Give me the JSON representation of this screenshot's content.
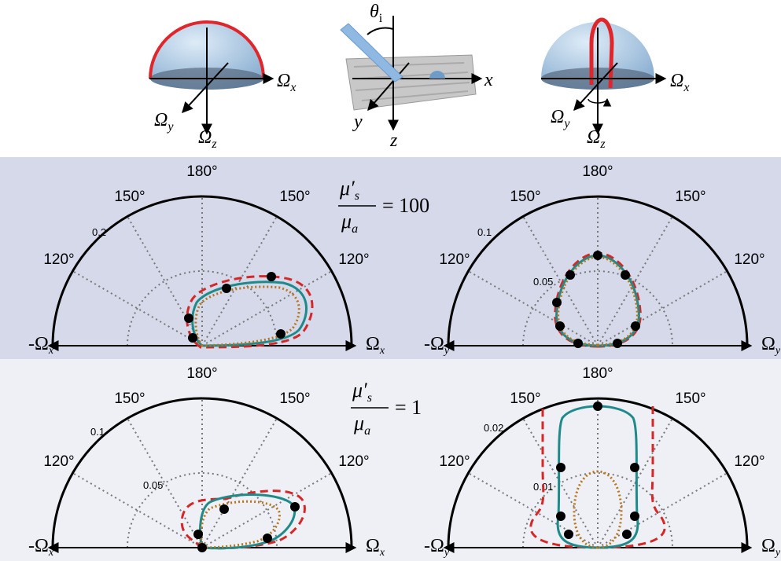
{
  "top_diagrams": [
    {
      "labels": [
        {
          "main": "Ω",
          "sub": "x"
        },
        {
          "main": "Ω",
          "sub": "y"
        },
        {
          "main": "Ω",
          "sub": "z"
        }
      ]
    },
    {
      "labels": [
        {
          "main": "θ",
          "sub": "i"
        },
        {
          "main": "x"
        },
        {
          "main": "y"
        },
        {
          "main": "z"
        }
      ]
    },
    {
      "labels": [
        {
          "main": "Ω",
          "sub": "x"
        },
        {
          "main": "Ω",
          "sub": "y"
        },
        {
          "main": "Ω",
          "sub": "z"
        }
      ]
    }
  ],
  "ratios": [
    {
      "numerator": "μ′",
      "numerator_sub": "s",
      "denominator": "μ",
      "denominator_sub": "a",
      "value": "= 100"
    },
    {
      "numerator": "μ′",
      "numerator_sub": "s",
      "denominator": "μ",
      "denominator_sub": "a",
      "value": "= 1"
    }
  ],
  "panels": [
    {
      "angle_labels": [
        "180°",
        "150°",
        "150°",
        "120°",
        "120°"
      ],
      "radial_ticks": [
        "0.2"
      ],
      "axis_left": {
        "prefix": "-",
        "main": "Ω",
        "sub": "x"
      },
      "axis_right": {
        "main": "Ω",
        "sub": "x"
      }
    },
    {
      "angle_labels": [
        "180°",
        "150°",
        "150°",
        "120°",
        "120°"
      ],
      "radial_ticks": [
        "0.1",
        "0.05"
      ],
      "axis_left": {
        "prefix": "-",
        "main": "Ω",
        "sub": "y"
      },
      "axis_right": {
        "main": "Ω",
        "sub": "y"
      }
    },
    {
      "angle_labels": [
        "180°",
        "150°",
        "150°",
        "120°",
        "120°"
      ],
      "radial_ticks": [
        "0.1",
        "0.05"
      ],
      "axis_left": {
        "prefix": "-",
        "main": "Ω",
        "sub": "x"
      },
      "axis_right": {
        "main": "Ω",
        "sub": "x"
      }
    },
    {
      "angle_labels": [
        "180°",
        "150°",
        "150°",
        "120°",
        "120°"
      ],
      "radial_ticks": [
        "0.02",
        "0.01"
      ],
      "axis_left": {
        "prefix": "-",
        "main": "Ω",
        "sub": "y"
      },
      "axis_right": {
        "main": "Ω",
        "sub": "y"
      }
    }
  ]
}
